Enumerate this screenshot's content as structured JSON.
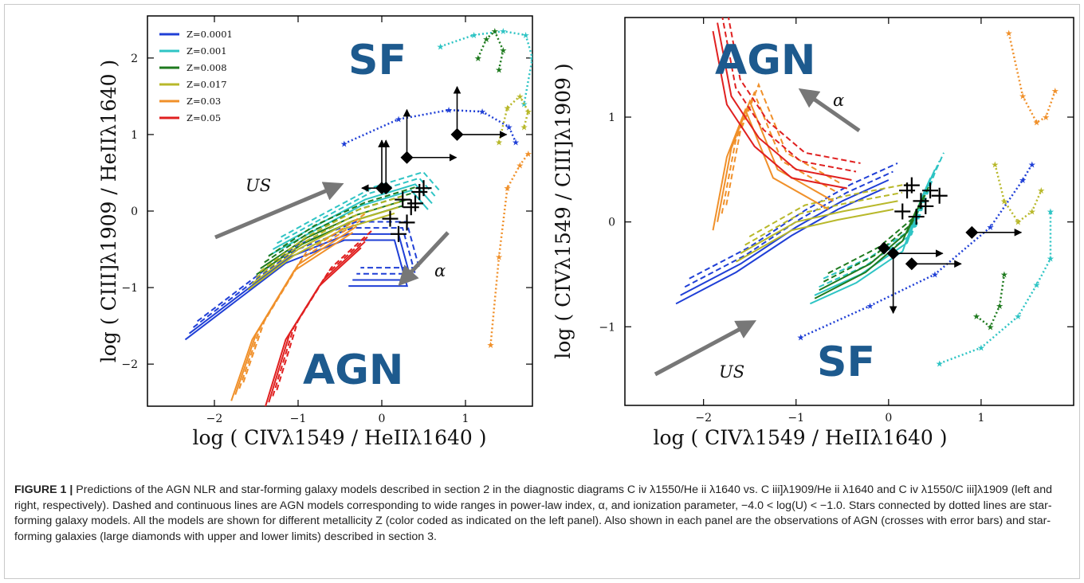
{
  "caption": {
    "fig_label": "FIGURE 1 |",
    "text": " Predictions of the AGN NLR and star-forming galaxy models described in section 2 in the diagnostic diagrams C iv λ1550/He ii λ1640 vs. C iii]λ1909/He ii λ1640 and C iv λ1550/C iii]λ1909 (left and right, respectively). Dashed and continuous lines are AGN models corresponding to wide ranges in power-law index, α, and ionization parameter, −4.0 < log(U) < −1.0. Stars connected by dotted lines are star-forming galaxy models. All the models are shown for different metallicity Z (color coded as indicated on the left panel). Also shown in each panel are the observations of AGN (crosses with error bars) and star-forming galaxies (large diamonds with upper and lower limits) described in section 3."
  },
  "legend": [
    {
      "label": "Z=0.0001",
      "color": "#1f3fd6"
    },
    {
      "label": "Z=0.001",
      "color": "#2ec4c4"
    },
    {
      "label": "Z=0.008",
      "color": "#1e7a1e"
    },
    {
      "label": "Z=0.017",
      "color": "#b8b82a"
    },
    {
      "label": "Z=0.03",
      "color": "#f0902a"
    },
    {
      "label": "Z=0.05",
      "color": "#e02020"
    }
  ],
  "chart_data": [
    {
      "type": "line",
      "panel": "left",
      "xlabel": "log ( CIVλ1549 / HeIIλ1640 )",
      "ylabel": "log ( CIII]λ1909 / HeIIλ1640 )",
      "xlim": [
        -2.8,
        1.8
      ],
      "ylim": [
        -2.55,
        2.55
      ],
      "xticks": [
        "−2",
        "−1",
        "0",
        "1"
      ],
      "yticks": [
        "−2",
        "−1",
        "0",
        "1",
        "2"
      ],
      "region_labels": [
        "SF",
        "AGN"
      ],
      "annotations": [
        "US",
        "α"
      ],
      "series": [
        {
          "name": "Z=0.0001",
          "sf_model": [
            [
              -0.45,
              0.88
            ],
            [
              0.2,
              1.2
            ],
            [
              0.8,
              1.32
            ],
            [
              1.2,
              1.3
            ],
            [
              1.52,
              1.1
            ],
            [
              1.6,
              0.9
            ]
          ],
          "agn_model": [
            [
              -2.3,
              -1.6
            ],
            [
              -1.7,
              -1.1
            ],
            [
              -1.1,
              -0.6
            ],
            [
              -0.4,
              -0.3
            ],
            [
              0.2,
              -0.3
            ],
            [
              0.35,
              -0.9
            ],
            [
              -0.35,
              -0.9
            ]
          ]
        },
        {
          "name": "Z=0.001",
          "sf_model": [
            [
              0.7,
              2.15
            ],
            [
              1.1,
              2.3
            ],
            [
              1.45,
              2.35
            ],
            [
              1.72,
              2.3
            ],
            [
              1.8,
              2.0
            ],
            [
              1.7,
              1.4
            ]
          ],
          "agn_model": [
            [
              -1.3,
              -0.5
            ],
            [
              -0.8,
              -0.2
            ],
            [
              -0.2,
              0.15
            ],
            [
              0.4,
              0.35
            ],
            [
              0.6,
              0.1
            ]
          ]
        },
        {
          "name": "Z=0.008",
          "sf_model": [
            [
              1.15,
              2.0
            ],
            [
              1.25,
              2.25
            ],
            [
              1.35,
              2.35
            ],
            [
              1.45,
              2.1
            ],
            [
              1.4,
              1.85
            ]
          ],
          "agn_model": [
            [
              -1.45,
              -0.75
            ],
            [
              -0.9,
              -0.35
            ],
            [
              -0.3,
              -0.05
            ],
            [
              0.3,
              0.15
            ]
          ]
        },
        {
          "name": "Z=0.017",
          "sf_model": [
            [
              1.4,
              0.9
            ],
            [
              1.5,
              1.35
            ],
            [
              1.65,
              1.5
            ],
            [
              1.75,
              1.3
            ],
            [
              1.7,
              1.1
            ]
          ],
          "agn_model": [
            [
              -1.55,
              -0.95
            ],
            [
              -1.0,
              -0.5
            ],
            [
              -0.4,
              -0.15
            ],
            [
              0.2,
              0.05
            ]
          ]
        },
        {
          "name": "Z=0.03",
          "sf_model": [
            [
              1.3,
              -1.75
            ],
            [
              1.4,
              -0.6
            ],
            [
              1.5,
              0.3
            ],
            [
              1.65,
              0.6
            ],
            [
              1.75,
              0.75
            ]
          ],
          "agn_model": [
            [
              -1.75,
              -2.4
            ],
            [
              -1.5,
              -1.6
            ],
            [
              -1.0,
              -0.7
            ],
            [
              -0.3,
              -0.2
            ]
          ]
        },
        {
          "name": "Z=0.05",
          "sf_model": [],
          "agn_model": [
            [
              -1.35,
              -2.5
            ],
            [
              -1.1,
              -1.6
            ],
            [
              -0.7,
              -0.9
            ],
            [
              -0.2,
              -0.4
            ]
          ]
        }
      ],
      "agn_observations": [
        {
          "x": 0.25,
          "y": 0.15
        },
        {
          "x": 0.35,
          "y": 0.05
        },
        {
          "x": 0.45,
          "y": 0.25
        },
        {
          "x": 0.1,
          "y": -0.1
        },
        {
          "x": 0.3,
          "y": -0.15
        },
        {
          "x": 0.5,
          "y": 0.3
        },
        {
          "x": 0.4,
          "y": 0.1
        },
        {
          "x": 0.2,
          "y": -0.3
        }
      ],
      "sf_observations": [
        {
          "x": 0.0,
          "y": 0.3,
          "limits": [
            "up-y",
            "left-x"
          ]
        },
        {
          "x": 0.05,
          "y": 0.3,
          "limits": [
            "up-y"
          ]
        },
        {
          "x": 0.3,
          "y": 0.7,
          "limits": [
            "up-y",
            "right-x"
          ]
        },
        {
          "x": 0.9,
          "y": 1.0,
          "limits": [
            "up-y",
            "right-x"
          ]
        }
      ]
    },
    {
      "type": "line",
      "panel": "right",
      "xlabel": "log ( CIVλ1549 / HeIIλ1640 )",
      "ylabel": "log ( CIVλ1549 / CIII]λ1909 )",
      "xlim": [
        -2.85,
        2.0
      ],
      "ylim": [
        -1.75,
        1.95
      ],
      "xticks": [
        "−2",
        "−1",
        "0",
        "1"
      ],
      "yticks": [
        "−1",
        "0",
        "1"
      ],
      "region_labels": [
        "AGN",
        "SF"
      ],
      "annotations": [
        "α",
        "US"
      ],
      "series": [
        {
          "name": "Z=0.0001",
          "sf_model": [
            [
              -0.95,
              -1.1
            ],
            [
              -0.2,
              -0.8
            ],
            [
              0.5,
              -0.5
            ],
            [
              1.1,
              -0.05
            ],
            [
              1.45,
              0.4
            ],
            [
              1.55,
              0.55
            ]
          ],
          "agn_model": [
            [
              -2.25,
              -0.7
            ],
            [
              -1.6,
              -0.4
            ],
            [
              -1.0,
              -0.05
            ],
            [
              -0.5,
              0.2
            ],
            [
              0.0,
              0.4
            ]
          ]
        },
        {
          "name": "Z=0.001",
          "sf_model": [
            [
              0.55,
              -1.35
            ],
            [
              1.0,
              -1.2
            ],
            [
              1.4,
              -0.9
            ],
            [
              1.6,
              -0.6
            ],
            [
              1.75,
              -0.35
            ],
            [
              1.75,
              0.1
            ]
          ],
          "agn_model": [
            [
              -0.8,
              -0.7
            ],
            [
              -0.3,
              -0.5
            ],
            [
              0.2,
              -0.2
            ],
            [
              0.4,
              0.3
            ],
            [
              0.5,
              0.5
            ]
          ]
        },
        {
          "name": "Z=0.008",
          "sf_model": [
            [
              0.95,
              -0.9
            ],
            [
              1.1,
              -1.0
            ],
            [
              1.2,
              -0.8
            ],
            [
              1.25,
              -0.5
            ]
          ],
          "agn_model": [
            [
              -0.75,
              -0.65
            ],
            [
              -0.2,
              -0.4
            ],
            [
              0.2,
              -0.1
            ],
            [
              0.35,
              0.2
            ]
          ]
        },
        {
          "name": "Z=0.017",
          "sf_model": [
            [
              1.15,
              0.55
            ],
            [
              1.25,
              0.2
            ],
            [
              1.4,
              0.0
            ],
            [
              1.55,
              0.1
            ],
            [
              1.65,
              0.3
            ]
          ],
          "agn_model": [
            [
              -1.6,
              -0.3
            ],
            [
              -1.0,
              0.0
            ],
            [
              -0.5,
              0.1
            ],
            [
              0.1,
              0.2
            ]
          ]
        },
        {
          "name": "Z=0.03",
          "sf_model": [
            [
              1.3,
              1.8
            ],
            [
              1.45,
              1.2
            ],
            [
              1.6,
              0.95
            ],
            [
              1.7,
              1.0
            ],
            [
              1.8,
              1.25
            ]
          ],
          "agn_model": [
            [
              -1.85,
              0.0
            ],
            [
              -1.7,
              0.7
            ],
            [
              -1.5,
              1.15
            ],
            [
              -1.2,
              0.5
            ],
            [
              -0.6,
              0.2
            ]
          ]
        },
        {
          "name": "Z=0.05",
          "sf_model": [],
          "agn_model": [
            [
              -1.85,
              1.9
            ],
            [
              -1.7,
              1.2
            ],
            [
              -1.4,
              0.8
            ],
            [
              -1.0,
              0.5
            ],
            [
              -0.4,
              0.4
            ]
          ]
        }
      ],
      "agn_observations": [
        {
          "x": 0.25,
          "y": 0.35
        },
        {
          "x": 0.35,
          "y": 0.2
        },
        {
          "x": 0.45,
          "y": 0.3
        },
        {
          "x": 0.15,
          "y": 0.1
        },
        {
          "x": 0.3,
          "y": 0.05
        },
        {
          "x": 0.55,
          "y": 0.25
        },
        {
          "x": 0.4,
          "y": 0.15
        },
        {
          "x": 0.2,
          "y": 0.3
        }
      ],
      "sf_observations": [
        {
          "x": 0.9,
          "y": -0.1,
          "limits": [
            "right-x"
          ]
        },
        {
          "x": 0.05,
          "y": -0.3,
          "limits": [
            "down-y",
            "right-x"
          ]
        },
        {
          "x": -0.05,
          "y": -0.25,
          "limits": []
        },
        {
          "x": 0.25,
          "y": -0.4,
          "limits": [
            "right-x"
          ]
        }
      ]
    }
  ]
}
